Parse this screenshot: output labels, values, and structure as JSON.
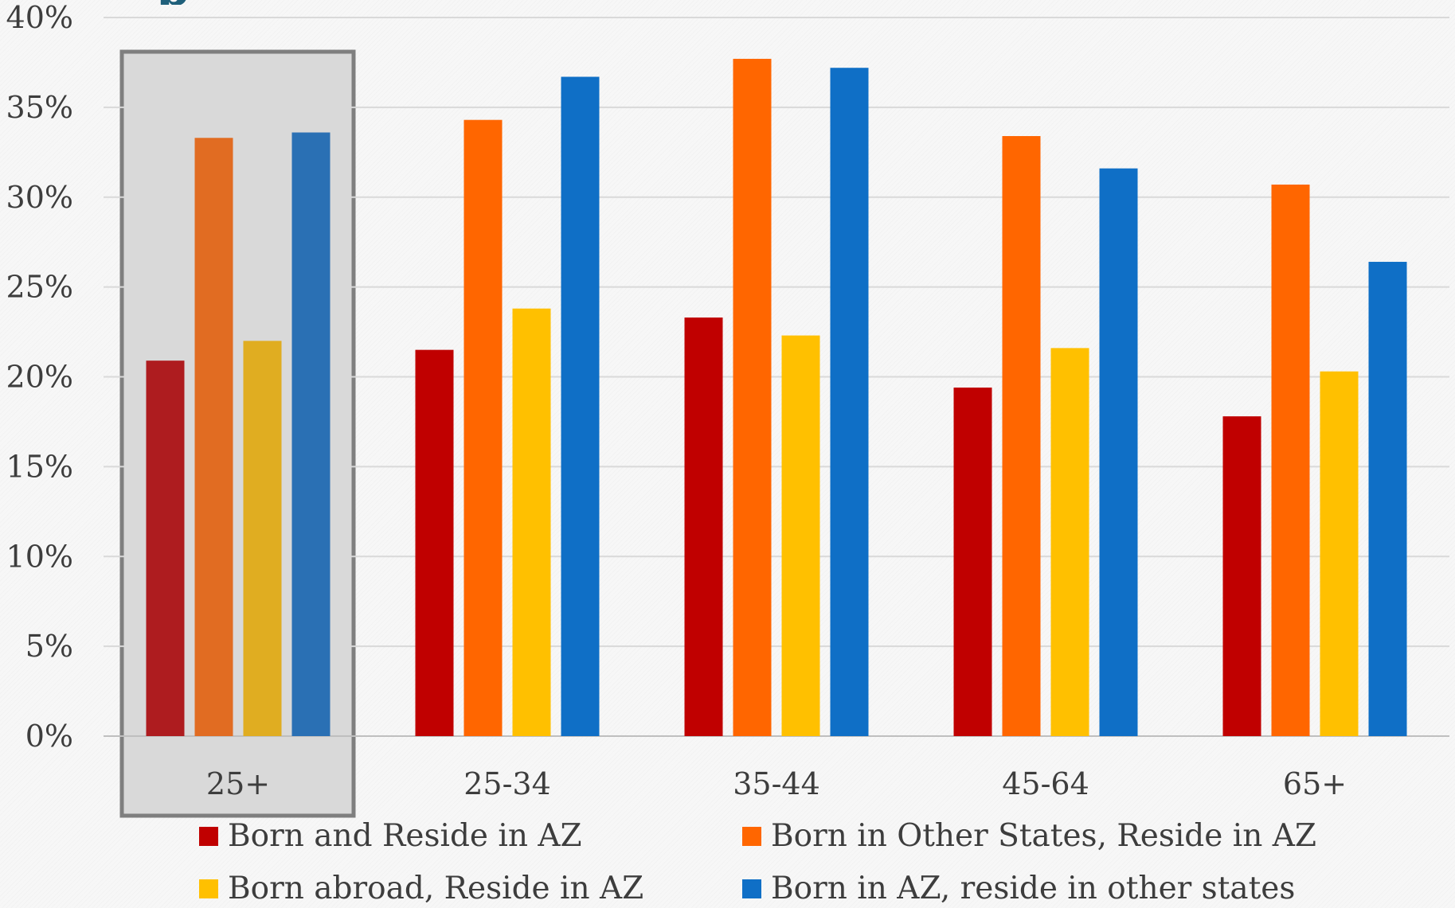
{
  "chart_data": {
    "type": "bar",
    "categories": [
      "25+",
      "25-34",
      "35-44",
      "45-64",
      "65+"
    ],
    "series": [
      {
        "name": "Born and Reside in AZ",
        "values": [
          20.9,
          21.5,
          23.3,
          19.4,
          17.8
        ],
        "color": "#c00000"
      },
      {
        "name": "Born in Other States, Reside in AZ",
        "values": [
          33.3,
          34.3,
          37.7,
          33.4,
          30.7
        ],
        "color": "#ff6600"
      },
      {
        "name": "Born abroad, Reside in AZ",
        "values": [
          22.0,
          23.8,
          22.3,
          21.6,
          20.3
        ],
        "color": "#ffc000"
      },
      {
        "name": "Born in AZ, reside in other states",
        "values": [
          33.6,
          36.7,
          37.2,
          31.6,
          26.4
        ],
        "color": "#0f6fc6"
      }
    ],
    "ylim": [
      0,
      40
    ],
    "yticks": [
      "0%",
      "5%",
      "10%",
      "15%",
      "20%",
      "25%",
      "30%",
      "35%",
      "40%"
    ],
    "grid": true,
    "legend_position": "bottom",
    "highlighted_category": "25+",
    "highlight_colors": [
      "#ae1c1f",
      "#e16c22",
      "#e0ad21",
      "#2a70b4"
    ],
    "highlight_fill": "#d9d9d9",
    "highlight_border": "#7f7f7f"
  },
  "title_fragment": "p"
}
